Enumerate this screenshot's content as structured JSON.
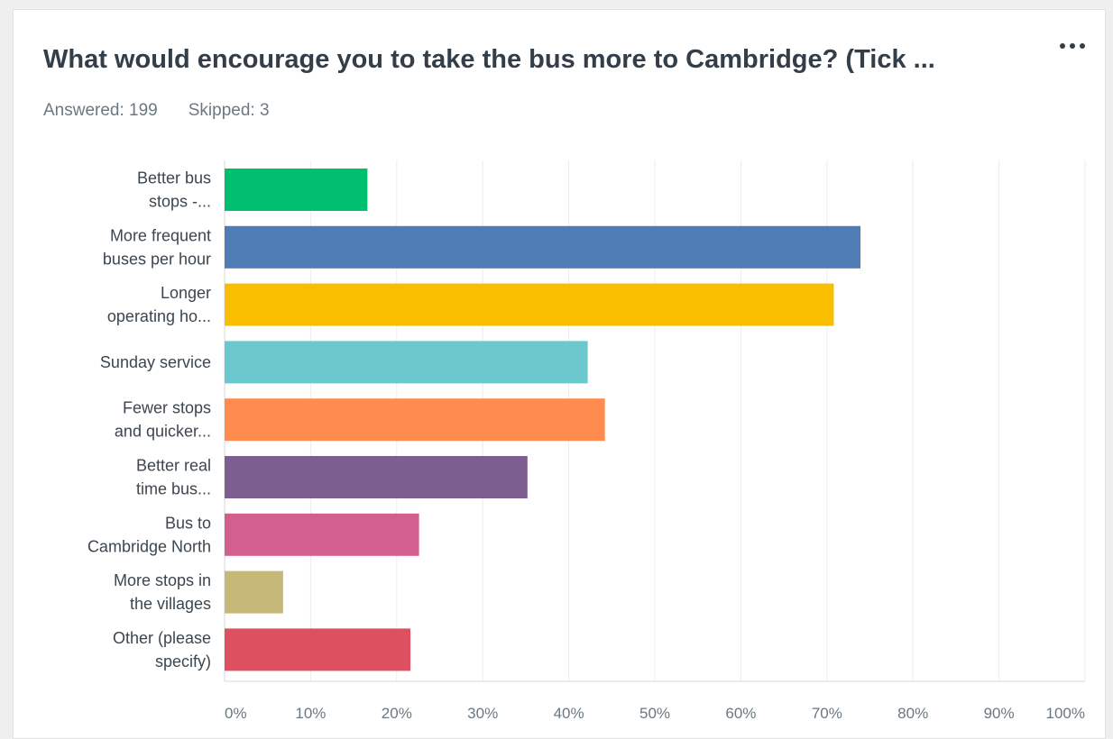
{
  "question": {
    "title": "What would encourage you to take the bus more to Cambridge? (Tick ...",
    "answered_label": "Answered: 199",
    "skipped_label": "Skipped: 3",
    "menu_icon": "more-options-icon"
  },
  "chart_data": {
    "type": "bar",
    "orientation": "horizontal",
    "title": "What would encourage you to take the bus more to Cambridge? (Tick ...",
    "categories": [
      [
        "Better bus",
        "stops -..."
      ],
      [
        "More frequent",
        "buses per hour"
      ],
      [
        "Longer",
        "operating ho..."
      ],
      [
        "Sunday service"
      ],
      [
        "Fewer stops",
        "and quicker..."
      ],
      [
        "Better real",
        "time bus..."
      ],
      [
        "Bus to",
        "Cambridge North"
      ],
      [
        "More stops in",
        "the villages"
      ],
      [
        "Other (please",
        "specify)"
      ]
    ],
    "values": [
      16.6,
      73.9,
      70.8,
      42.2,
      44.2,
      35.2,
      22.6,
      6.8,
      21.6
    ],
    "colors": [
      "#00bf6f",
      "#507cb6",
      "#f9be00",
      "#6bc8cd",
      "#ff8b4f",
      "#7d5e90",
      "#d25f90",
      "#c6b879",
      "#dc5060"
    ],
    "xticks": [
      "0%",
      "10%",
      "20%",
      "30%",
      "40%",
      "50%",
      "60%",
      "70%",
      "80%",
      "90%",
      "100%"
    ],
    "xlim": [
      0,
      100
    ],
    "xlabel": "",
    "ylabel": "",
    "grid": true,
    "legend": "none"
  }
}
